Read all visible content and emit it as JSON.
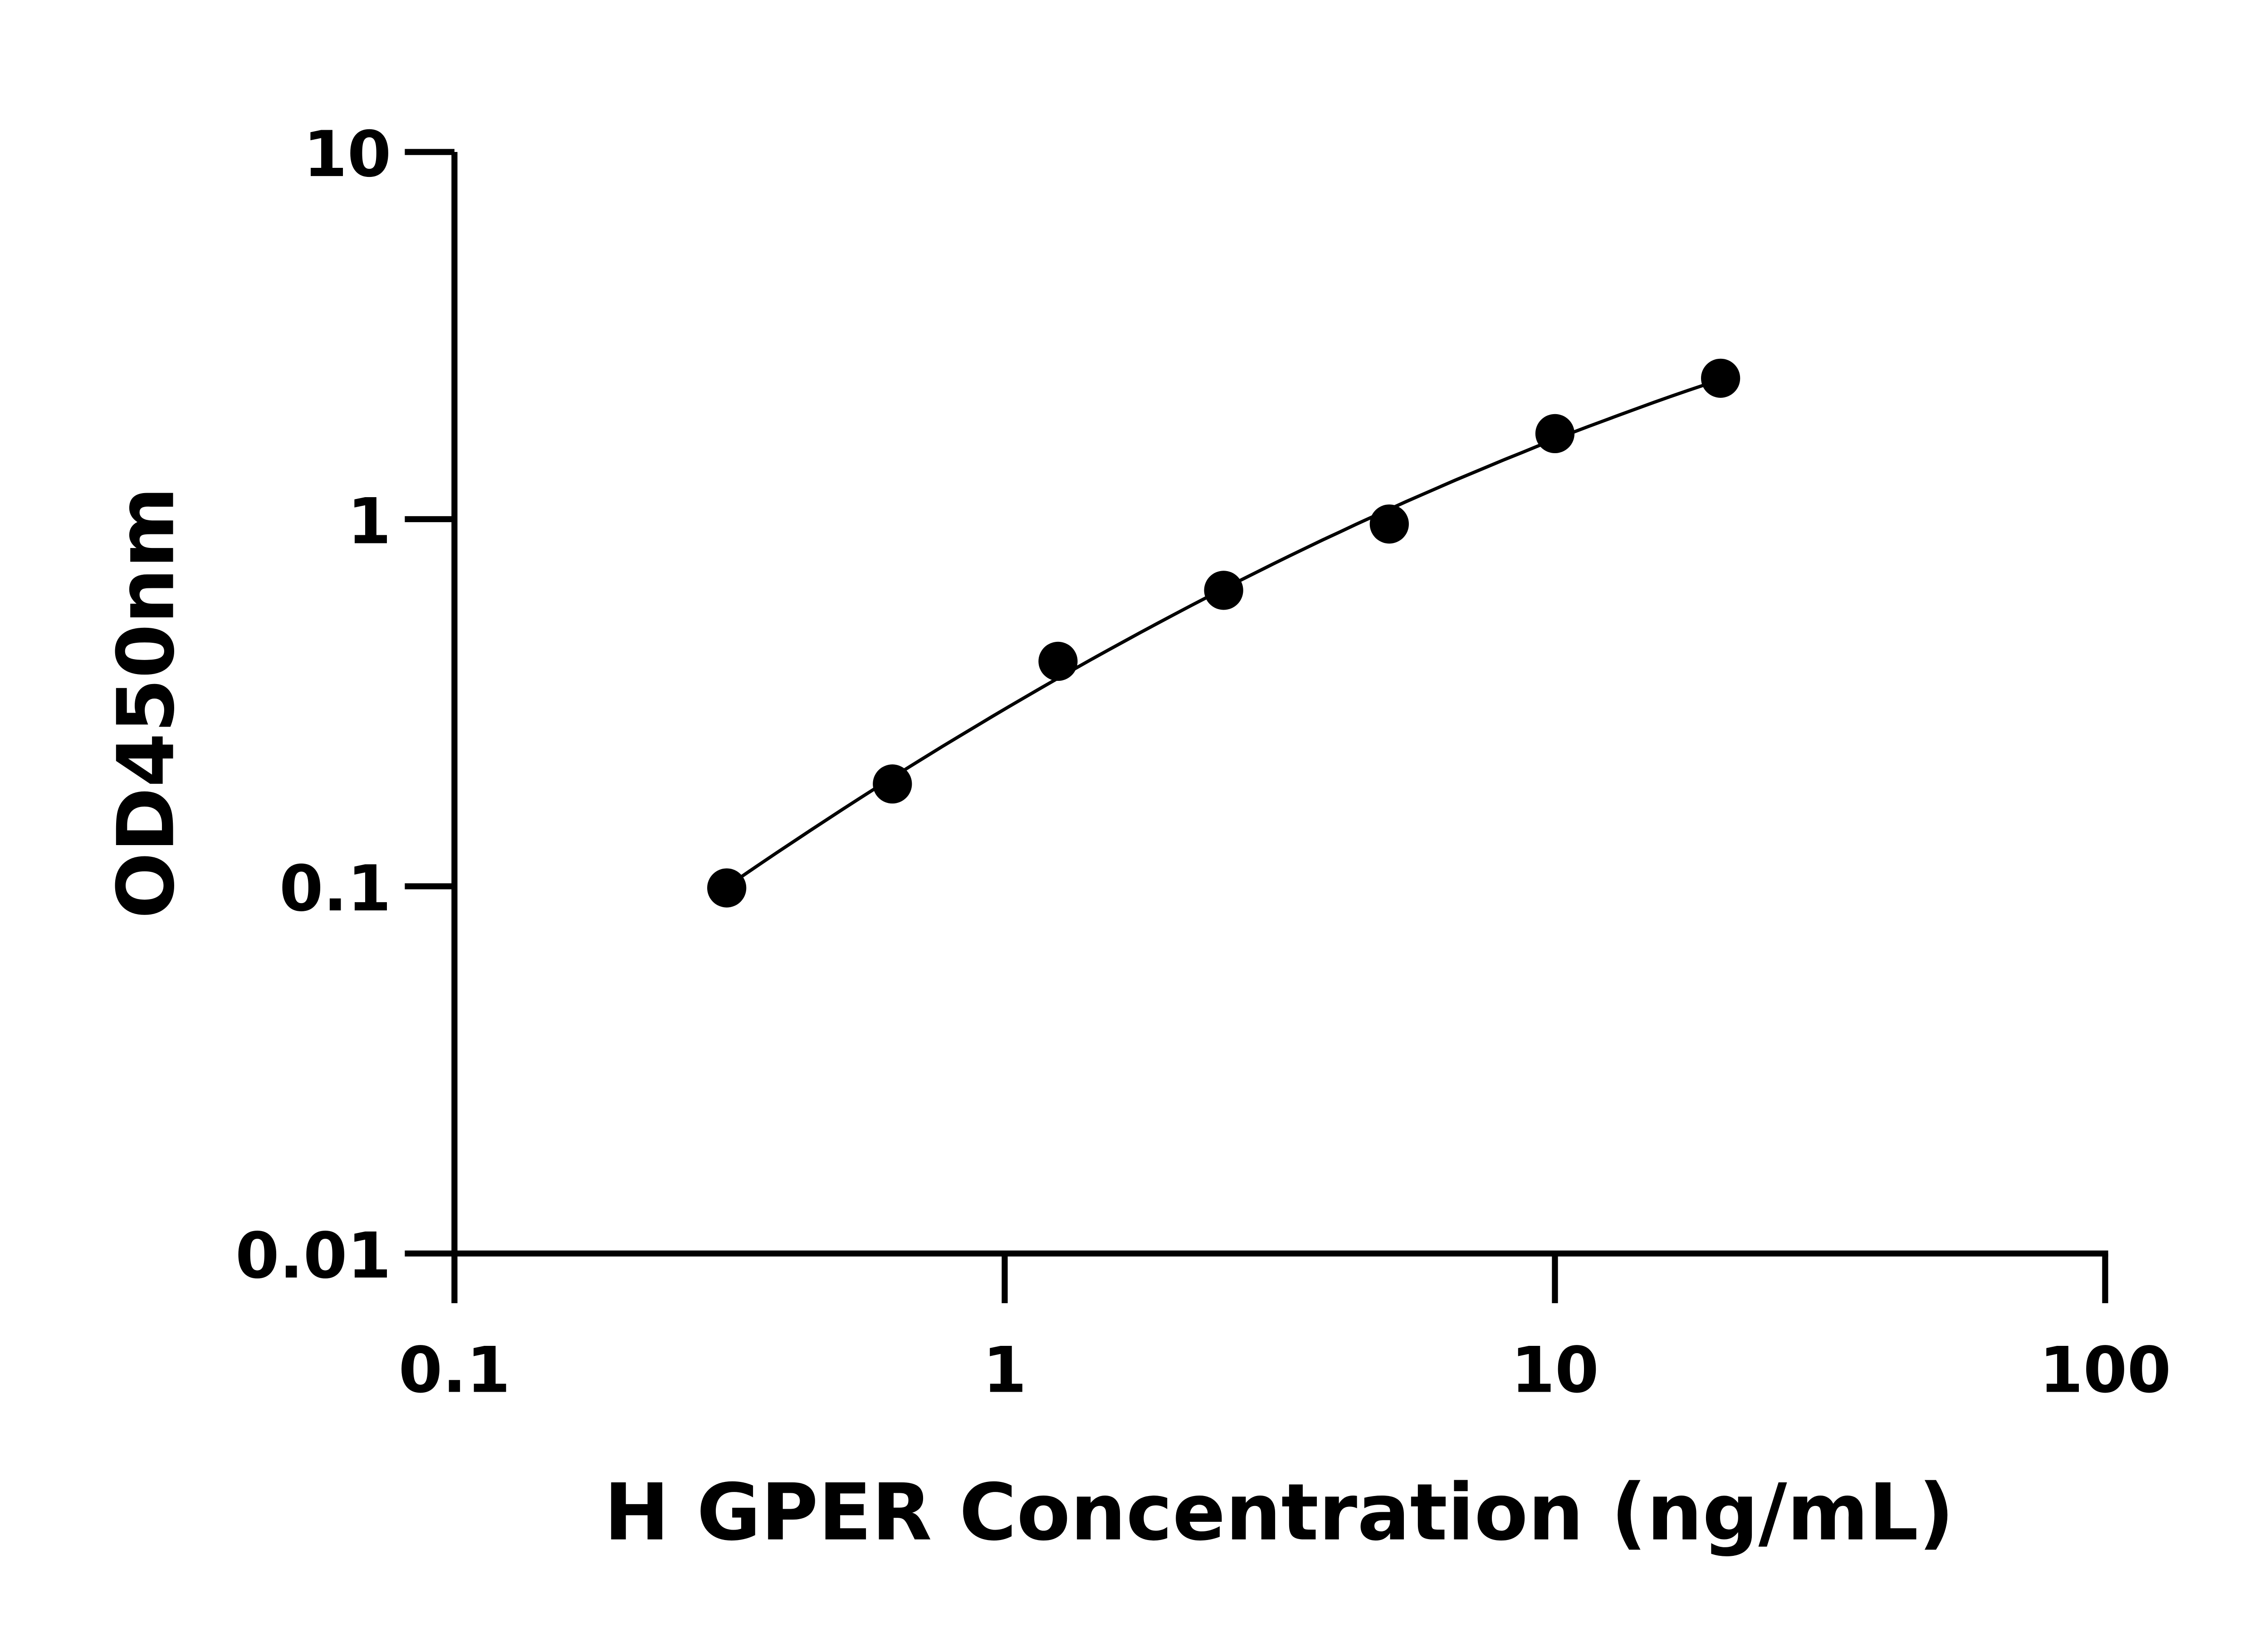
{
  "chart_data": {
    "type": "scatter",
    "title": "",
    "xlabel": "H GPER Concentration (ng/mL)",
    "ylabel": "OD450nm",
    "x_scale": "log",
    "y_scale": "log",
    "xlim": [
      0.1,
      100
    ],
    "ylim": [
      0.01,
      10
    ],
    "x_ticks": [
      "0.1",
      "1",
      "10",
      "100"
    ],
    "y_ticks": [
      "0.01",
      "0.1",
      "1",
      "10"
    ],
    "grid": false,
    "fit_line": true,
    "marker_color": "#000000",
    "x": [
      0.3125,
      0.625,
      1.25,
      2.5,
      5,
      10,
      20
    ],
    "y": [
      0.099,
      0.19,
      0.41,
      0.64,
      0.97,
      1.71,
      2.42
    ]
  }
}
